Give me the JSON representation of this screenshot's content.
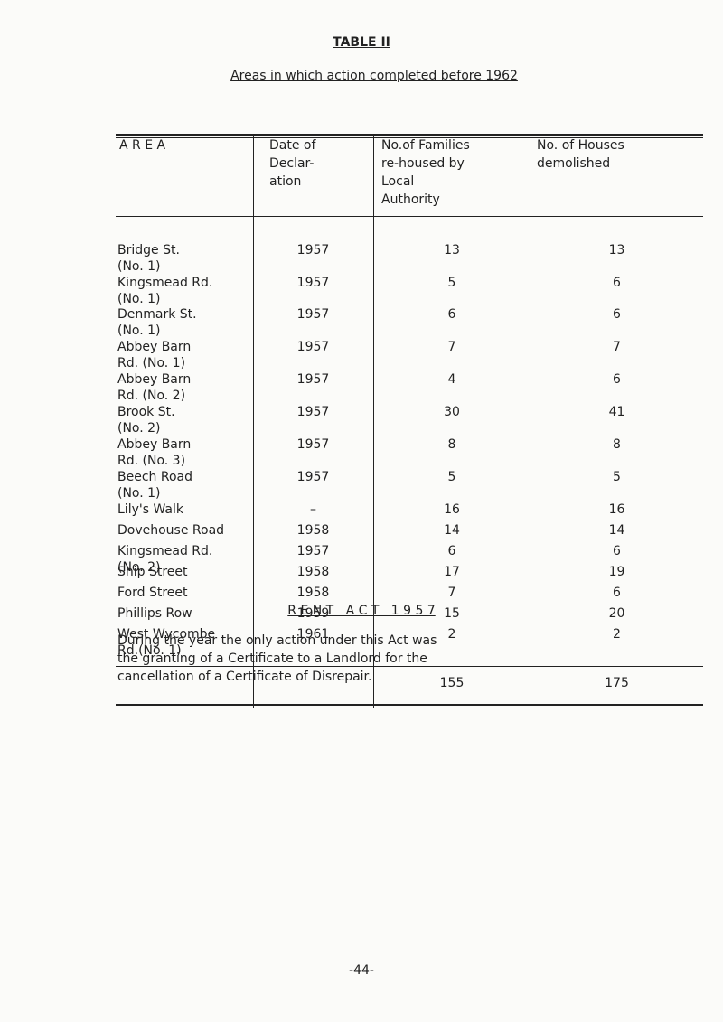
{
  "header": {
    "title": "TABLE II",
    "subtitle": "Areas in which action completed before 1962"
  },
  "table": {
    "columns": [
      [
        "A R E A"
      ],
      [
        "Date of",
        "Declar-",
        "ation"
      ],
      [
        "No.of Families",
        "re-housed by",
        "Local",
        "Authority"
      ],
      [
        "No. of Houses",
        "demolished"
      ]
    ],
    "rows": [
      [
        [
          "Bridge St.",
          "(No. 1)"
        ],
        "1957",
        "13",
        "13"
      ],
      [
        [
          "Kingsmead Rd.",
          "(No. 1)"
        ],
        "1957",
        "5",
        "6"
      ],
      [
        [
          "Denmark St.",
          "(No. 1)"
        ],
        "1957",
        "6",
        "6"
      ],
      [
        [
          "Abbey Barn",
          "Rd. (No. 1)"
        ],
        "1957",
        "7",
        "7"
      ],
      [
        [
          "Abbey Barn",
          "Rd. (No. 2)"
        ],
        "1957",
        "4",
        "6"
      ],
      [
        [
          "Brook St.",
          "(No. 2)"
        ],
        "1957",
        "30",
        "41"
      ],
      [
        [
          "Abbey Barn",
          "Rd. (No. 3)"
        ],
        "1957",
        "8",
        "8"
      ],
      [
        [
          "Beech Road",
          "(No. 1)"
        ],
        "1957",
        "5",
        "5"
      ],
      [
        [
          "Lily's Walk"
        ],
        "–",
        "16",
        "16"
      ],
      [
        [
          "Dovehouse Road"
        ],
        "1958",
        "14",
        "14"
      ],
      [
        [
          "Kingsmead Rd.",
          "(No. 2)"
        ],
        "1957",
        "6",
        "6"
      ],
      [
        [
          "Ship Street"
        ],
        "1958",
        "17",
        "19"
      ],
      [
        [
          "Ford Street"
        ],
        "1958",
        "7",
        "6"
      ],
      [
        [
          "Phillips Row"
        ],
        "1959",
        "15",
        "20"
      ],
      [
        [
          "West Wycombe",
          "Rd.(No. 1)"
        ],
        "1961",
        "2",
        "2"
      ]
    ],
    "totals": {
      "families": "155",
      "houses": "175"
    }
  },
  "section": {
    "heading": "R E N T   A C T   1 9 5 7",
    "paragraph": [
      "During the year the only action under this Act was",
      "the granting of a Certificate to a Landlord for the",
      "cancellation of a Certificate of Disrepair."
    ]
  },
  "footer": {
    "page": "-44-"
  }
}
